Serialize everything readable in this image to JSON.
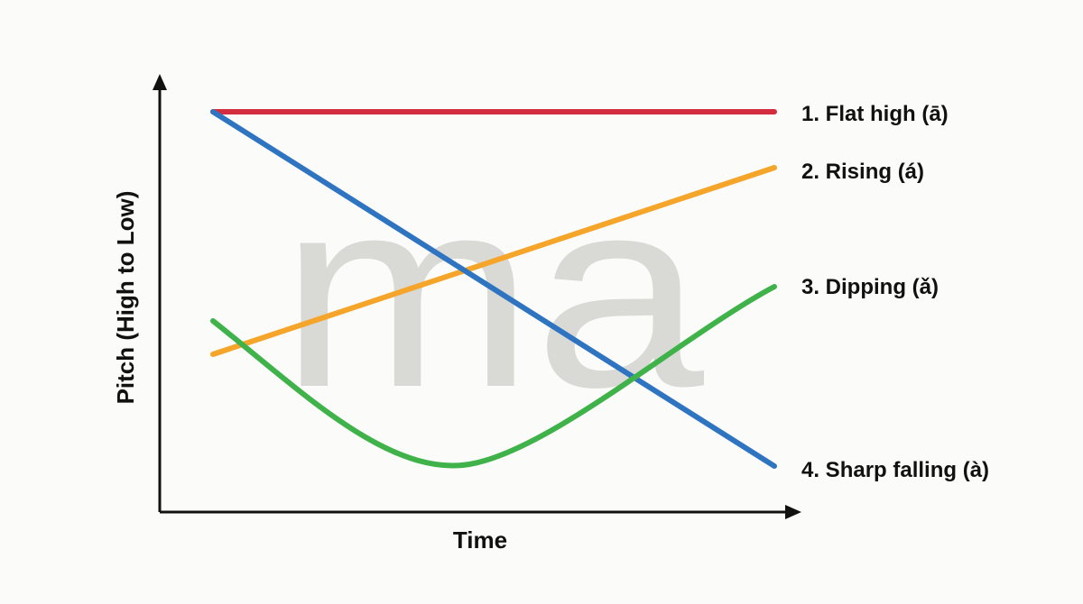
{
  "watermark": "ma",
  "axes": {
    "x_title": "Time",
    "y_title": "Pitch (High to Low)"
  },
  "tones": [
    {
      "label": "1. Flat high (ā)",
      "color": "#d42d3f",
      "shape": "flat-high"
    },
    {
      "label": "2. Rising (á)",
      "color": "#f5a52a",
      "shape": "rising"
    },
    {
      "label": "3. Dipping (ǎ)",
      "color": "#3fb24a",
      "shape": "dipping"
    },
    {
      "label": "4. Sharp falling (à)",
      "color": "#2f74c0",
      "shape": "falling"
    }
  ]
}
